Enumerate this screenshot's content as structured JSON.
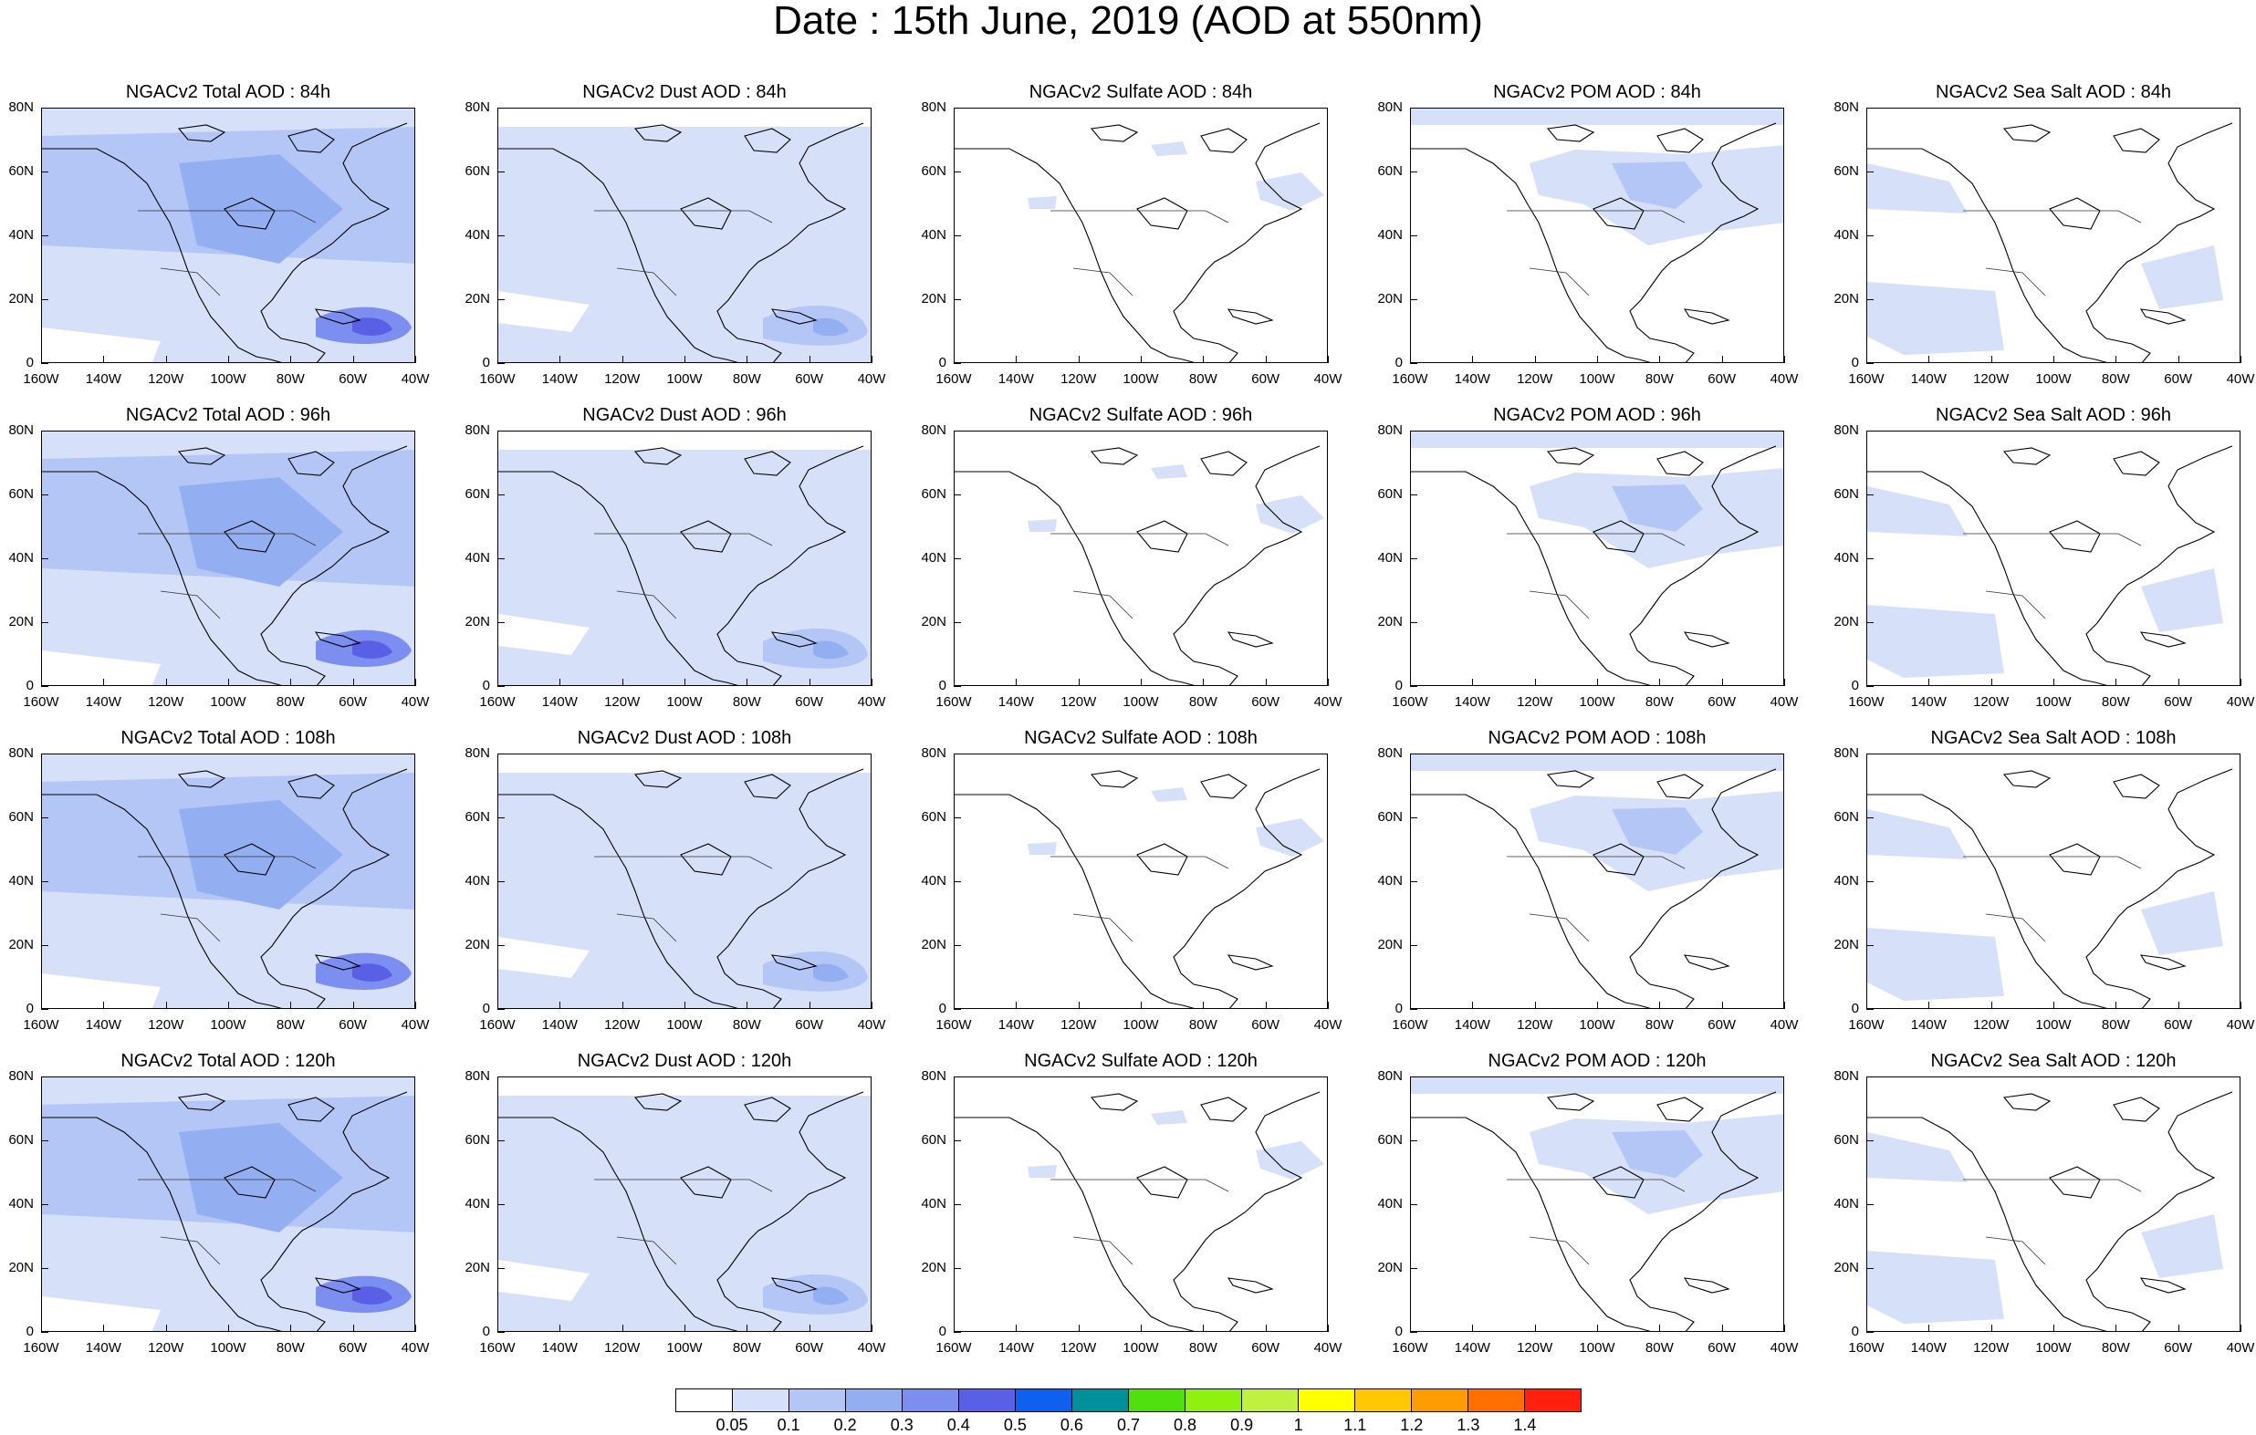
{
  "title": "Date : 15th June, 2019 (AOD at 550nm)",
  "lat_ticks": [
    "80N",
    "60N",
    "40N",
    "20N",
    "0"
  ],
  "lon_ticks": [
    "160W",
    "140W",
    "120W",
    "100W",
    "80W",
    "60W",
    "40W"
  ],
  "panels": [
    {
      "title": "NGACv2 Total AOD : 84h",
      "variable": "total",
      "hour": 84,
      "dominant_level": 0.2
    },
    {
      "title": "NGACv2 Dust AOD : 84h",
      "variable": "dust",
      "hour": 84,
      "dominant_level": 0.1
    },
    {
      "title": "NGACv2 Sulfate AOD : 84h",
      "variable": "sulfate",
      "hour": 84,
      "dominant_level": 0.05
    },
    {
      "title": "NGACv2 POM AOD : 84h",
      "variable": "pom",
      "hour": 84,
      "dominant_level": 0.05
    },
    {
      "title": "NGACv2 Sea Salt AOD : 84h",
      "variable": "seasalt",
      "hour": 84,
      "dominant_level": 0.05
    },
    {
      "title": "NGACv2 Total AOD : 96h",
      "variable": "total",
      "hour": 96,
      "dominant_level": 0.2
    },
    {
      "title": "NGACv2 Dust AOD : 96h",
      "variable": "dust",
      "hour": 96,
      "dominant_level": 0.1
    },
    {
      "title": "NGACv2 Sulfate AOD : 96h",
      "variable": "sulfate",
      "hour": 96,
      "dominant_level": 0.05
    },
    {
      "title": "NGACv2 POM AOD : 96h",
      "variable": "pom",
      "hour": 96,
      "dominant_level": 0.05
    },
    {
      "title": "NGACv2 Sea Salt AOD : 96h",
      "variable": "seasalt",
      "hour": 96,
      "dominant_level": 0.05
    },
    {
      "title": "NGACv2 Total AOD : 108h",
      "variable": "total",
      "hour": 108,
      "dominant_level": 0.2
    },
    {
      "title": "NGACv2 Dust AOD : 108h",
      "variable": "dust",
      "hour": 108,
      "dominant_level": 0.1
    },
    {
      "title": "NGACv2 Sulfate AOD : 108h",
      "variable": "sulfate",
      "hour": 108,
      "dominant_level": 0.05
    },
    {
      "title": "NGACv2 POM AOD : 108h",
      "variable": "pom",
      "hour": 108,
      "dominant_level": 0.05
    },
    {
      "title": "NGACv2 Sea Salt AOD : 108h",
      "variable": "seasalt",
      "hour": 108,
      "dominant_level": 0.05
    },
    {
      "title": "NGACv2 Total AOD : 120h",
      "variable": "total",
      "hour": 120,
      "dominant_level": 0.2
    },
    {
      "title": "NGACv2 Dust AOD : 120h",
      "variable": "dust",
      "hour": 120,
      "dominant_level": 0.1
    },
    {
      "title": "NGACv2 Sulfate AOD : 120h",
      "variable": "sulfate",
      "hour": 120,
      "dominant_level": 0.05
    },
    {
      "title": "NGACv2 POM AOD : 120h",
      "variable": "pom",
      "hour": 120,
      "dominant_level": 0.05
    },
    {
      "title": "NGACv2 Sea Salt  AOD : 120h",
      "variable": "seasalt",
      "hour": 120,
      "dominant_level": 0.05
    }
  ],
  "colorbar": {
    "colors": [
      "#ffffff",
      "#d6e0f8",
      "#b4c6f5",
      "#94aef2",
      "#7c8ef0",
      "#5a60e6",
      "#1060f0",
      "#00909a",
      "#50e010",
      "#90f010",
      "#c0f040",
      "#ffff00",
      "#ffc800",
      "#ff9c00",
      "#ff7000",
      "#ff2010"
    ],
    "labels": [
      "0.05",
      "0.1",
      "0.2",
      "0.3",
      "0.4",
      "0.5",
      "0.6",
      "0.7",
      "0.8",
      "0.9",
      "1",
      "1.1",
      "1.2",
      "1.3",
      "1.4"
    ]
  }
}
